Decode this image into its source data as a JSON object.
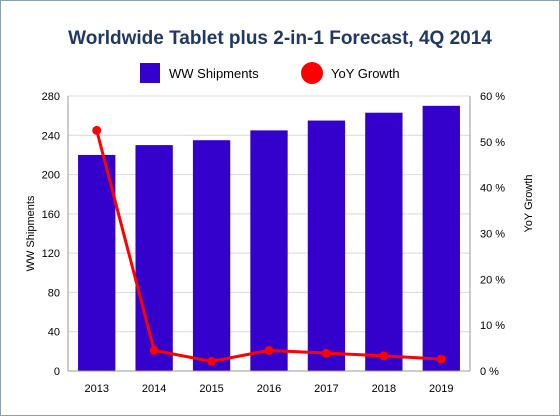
{
  "chart_data": {
    "type": "bar",
    "title": "Worldwide Tablet plus 2-in-1 Forecast, 4Q 2014",
    "categories": [
      "2013",
      "2014",
      "2015",
      "2016",
      "2017",
      "2018",
      "2019"
    ],
    "series": [
      {
        "name": "WW Shipments",
        "kind": "bar",
        "axis": "left",
        "color": "#3300cc",
        "values": [
          220,
          230,
          235,
          245,
          255,
          263,
          270
        ]
      },
      {
        "name": "YoY Growth",
        "kind": "line",
        "axis": "right",
        "color": "#ff0000",
        "values": [
          52.5,
          4.5,
          2.1,
          4.5,
          3.9,
          3.3,
          2.6
        ]
      }
    ],
    "ylabel": "WW Shipments",
    "y2label": "YoY Growth",
    "ylim": [
      0,
      280
    ],
    "y2lim": [
      0,
      60
    ],
    "yticks": [
      "0",
      "40",
      "80",
      "120",
      "160",
      "200",
      "240",
      "280"
    ],
    "y2ticks": [
      "0 %",
      "10 %",
      "20 %",
      "30 %",
      "40 %",
      "50 %",
      "60 %"
    ],
    "grid": true,
    "legend": "top-center"
  }
}
